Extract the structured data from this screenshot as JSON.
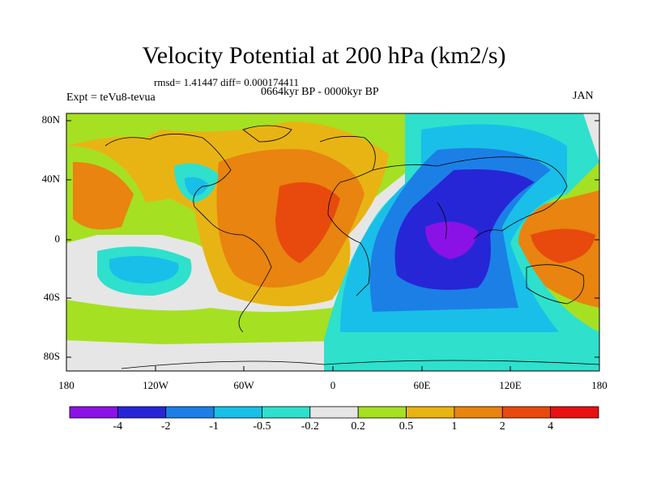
{
  "title": "Velocity Potential at 200 hPa (km2/s)",
  "stats": "rmsd= 1.41447 diff= 0.000174411",
  "experiment": "Expt = teVu8-tevua",
  "period": "0664kyr BP - 0000kyr BP",
  "month": "JAN",
  "y_axis_labels": [
    "80N",
    "40N",
    "0",
    "40S",
    "80S"
  ],
  "x_axis_labels": [
    "180",
    "120W",
    "60W",
    "0",
    "60E",
    "120E",
    "180"
  ],
  "colorbar": {
    "colors": [
      "#8a12e6",
      "#2626d6",
      "#1c7fe6",
      "#19bfe8",
      "#2fe0cc",
      "#e6e6e6",
      "#a6e022",
      "#e8b414",
      "#e8840f",
      "#e84a0e",
      "#e81010"
    ],
    "labels": [
      "-4",
      "-2",
      "-1",
      "-0.5",
      "-0.2",
      "0.2",
      "0.5",
      "1",
      "2",
      "4"
    ]
  }
}
